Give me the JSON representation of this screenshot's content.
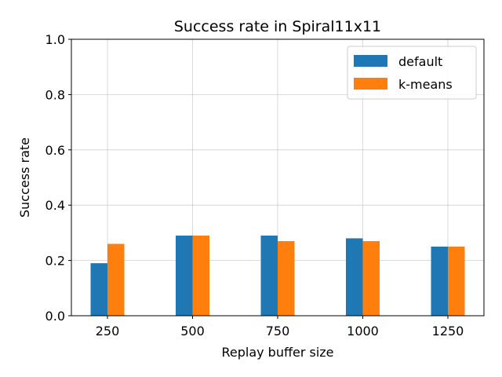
{
  "chart_data": {
    "type": "bar",
    "title": "Success rate in Spiral11x11",
    "xlabel": "Replay buffer size",
    "ylabel": "Success rate",
    "categories": [
      "250",
      "500",
      "750",
      "1000",
      "1250"
    ],
    "series": [
      {
        "name": "default",
        "color": "#1f77b4",
        "values": [
          0.19,
          0.29,
          0.29,
          0.28,
          0.25
        ]
      },
      {
        "name": "k-means",
        "color": "#ff7f0e",
        "values": [
          0.26,
          0.29,
          0.27,
          0.27,
          0.25
        ]
      }
    ],
    "ylim": [
      0,
      1.0
    ],
    "yticks": [
      "0.0",
      "0.2",
      "0.4",
      "0.6",
      "0.8",
      "1.0"
    ],
    "grid": true,
    "legend_position": "top-right"
  }
}
